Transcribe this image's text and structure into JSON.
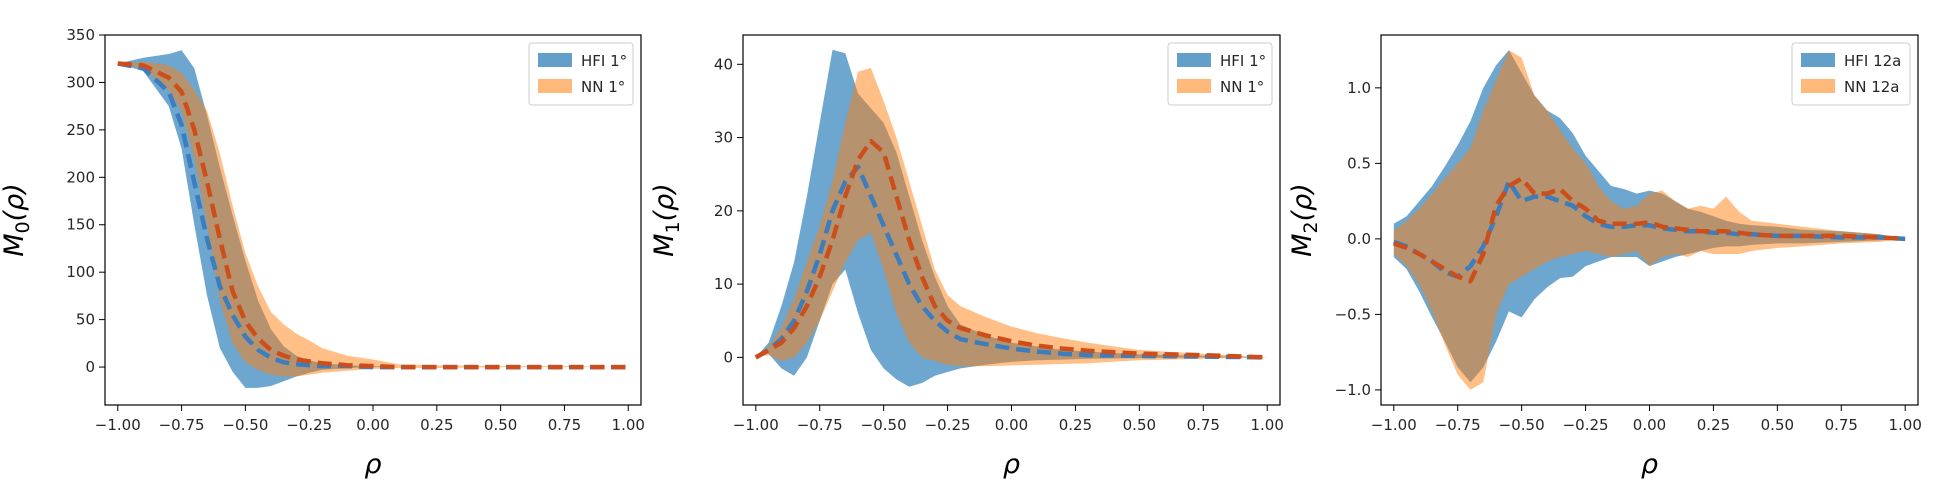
{
  "chart_data": [
    {
      "type": "area",
      "ylabel": "M_0(ρ)",
      "ylabel_parts": {
        "base": "M",
        "sub": "0",
        "arg": "(ρ)"
      },
      "xlabel": "ρ",
      "xlim": [
        -1.05,
        1.05
      ],
      "ylim": [
        -40,
        350
      ],
      "xticks": [
        -1.0,
        -0.75,
        -0.5,
        -0.25,
        0.0,
        0.25,
        0.5,
        0.75,
        1.0
      ],
      "xtick_labels": [
        "−1.00",
        "−0.75",
        "−0.50",
        "−0.25",
        "0.00",
        "0.25",
        "0.50",
        "0.75",
        "1.00"
      ],
      "yticks": [
        0,
        50,
        100,
        150,
        200,
        250,
        300,
        350
      ],
      "ytick_labels": [
        "0",
        "50",
        "100",
        "150",
        "200",
        "250",
        "300",
        "350"
      ],
      "legend": "top-right",
      "x": [
        -1.0,
        -0.9,
        -0.8,
        -0.75,
        -0.7,
        -0.65,
        -0.6,
        -0.55,
        -0.5,
        -0.45,
        -0.4,
        -0.35,
        -0.3,
        -0.25,
        -0.2,
        -0.1,
        0.0,
        0.1,
        0.25,
        0.5,
        0.75,
        1.0
      ],
      "series": [
        {
          "name": "HFI 1°",
          "color": "#1f77b4",
          "mean": [
            320,
            315,
            290,
            255,
            195,
            135,
            85,
            55,
            32,
            18,
            10,
            5,
            3,
            2,
            1,
            1,
            0,
            0,
            0,
            0,
            0,
            0
          ],
          "upper": [
            320,
            326,
            330,
            334,
            315,
            265,
            210,
            160,
            112,
            70,
            40,
            22,
            12,
            7,
            4,
            2,
            1,
            0,
            0,
            0,
            0,
            0
          ],
          "lower": [
            320,
            312,
            275,
            230,
            150,
            75,
            20,
            -5,
            -22,
            -22,
            -20,
            -15,
            -10,
            -6,
            -3,
            -1,
            0,
            0,
            0,
            0,
            0,
            0
          ]
        },
        {
          "name": "NN 1°",
          "color": "#ff7f0e",
          "mean": [
            320,
            318,
            305,
            290,
            250,
            195,
            135,
            80,
            48,
            30,
            18,
            12,
            8,
            6,
            4,
            2,
            1,
            0,
            0,
            0,
            0,
            0
          ],
          "upper": [
            320,
            322,
            318,
            310,
            292,
            270,
            225,
            170,
            120,
            85,
            58,
            45,
            35,
            28,
            20,
            12,
            8,
            3,
            2,
            1,
            1,
            0
          ],
          "lower": [
            320,
            315,
            292,
            270,
            220,
            150,
            70,
            25,
            5,
            -3,
            -8,
            -10,
            -10,
            -8,
            -6,
            -4,
            -2,
            -1,
            -1,
            0,
            0,
            0
          ]
        }
      ]
    },
    {
      "type": "area",
      "ylabel": "M_1(ρ)",
      "ylabel_parts": {
        "base": "M",
        "sub": "1",
        "arg": "(ρ)"
      },
      "xlabel": "ρ",
      "xlim": [
        -1.05,
        1.05
      ],
      "ylim": [
        -6.5,
        44
      ],
      "xticks": [
        -1.0,
        -0.75,
        -0.5,
        -0.25,
        0.0,
        0.25,
        0.5,
        0.75,
        1.0
      ],
      "xtick_labels": [
        "−1.00",
        "−0.75",
        "−0.50",
        "−0.25",
        "0.00",
        "0.25",
        "0.50",
        "0.75",
        "1.00"
      ],
      "yticks": [
        0,
        10,
        20,
        30,
        40
      ],
      "ytick_labels": [
        "0",
        "10",
        "20",
        "30",
        "40"
      ],
      "legend": "top-right",
      "x": [
        -1.0,
        -0.95,
        -0.9,
        -0.85,
        -0.8,
        -0.75,
        -0.7,
        -0.65,
        -0.6,
        -0.55,
        -0.5,
        -0.45,
        -0.4,
        -0.35,
        -0.3,
        -0.25,
        -0.2,
        -0.1,
        0.0,
        0.1,
        0.2,
        0.3,
        0.5,
        0.75,
        1.0
      ],
      "series": [
        {
          "name": "HFI 1°",
          "color": "#1f77b4",
          "mean": [
            0,
            1,
            2.5,
            5,
            9,
            14,
            20,
            24,
            26,
            22,
            18,
            14,
            10,
            7,
            5,
            3.5,
            2.5,
            1.8,
            1.2,
            0.8,
            0.5,
            0.3,
            0.2,
            0.1,
            0
          ],
          "upper": [
            0,
            2,
            7,
            13,
            22,
            32,
            42,
            41.5,
            36,
            34,
            32,
            28,
            22,
            16,
            11,
            7,
            4.5,
            3,
            2,
            1.5,
            1,
            0.8,
            0.4,
            0.2,
            0
          ],
          "lower": [
            0,
            0.5,
            -1.5,
            -2.5,
            0,
            5,
            10,
            12,
            6,
            1,
            -1.5,
            -3,
            -4,
            -3.5,
            -2.5,
            -2,
            -1.5,
            -1,
            -0.6,
            -0.4,
            -0.3,
            -0.2,
            -0.1,
            0,
            0
          ]
        },
        {
          "name": "NN 1°",
          "color": "#ff7f0e",
          "mean": [
            0,
            1,
            2,
            4,
            7,
            11,
            16,
            22,
            27,
            29.5,
            28,
            22,
            16,
            11,
            7,
            5,
            4,
            3,
            2.2,
            1.6,
            1.2,
            0.9,
            0.5,
            0.3,
            0
          ],
          "upper": [
            0,
            1.5,
            4,
            8,
            13,
            18,
            24,
            32,
            39,
            39.5,
            35,
            30,
            24,
            18,
            12,
            8.5,
            7,
            5.5,
            4.2,
            3.3,
            2.6,
            2,
            1,
            0.5,
            0
          ],
          "lower": [
            0,
            0.3,
            -0.5,
            0,
            2,
            5,
            9,
            13,
            16,
            17,
            12,
            6,
            2,
            0,
            -0.5,
            -1,
            -1.2,
            -1.2,
            -1.1,
            -1,
            -0.9,
            -0.8,
            -0.4,
            -0.2,
            0
          ]
        }
      ]
    },
    {
      "type": "area",
      "ylabel": "M_2(ρ)",
      "ylabel_parts": {
        "base": "M",
        "sub": "2",
        "arg": "(ρ)"
      },
      "xlabel": "ρ",
      "xlim": [
        -1.05,
        1.05
      ],
      "ylim": [
        -1.1,
        1.35
      ],
      "xticks": [
        -1.0,
        -0.75,
        -0.5,
        -0.25,
        0.0,
        0.25,
        0.5,
        0.75,
        1.0
      ],
      "xtick_labels": [
        "−1.00",
        "−0.75",
        "−0.50",
        "−0.25",
        "0.00",
        "0.25",
        "0.50",
        "0.75",
        "1.00"
      ],
      "yticks": [
        -1.0,
        -0.5,
        0.0,
        0.5,
        1.0
      ],
      "ytick_labels": [
        "−1.0",
        "−0.5",
        "0.0",
        "0.5",
        "1.0"
      ],
      "legend": "top-right",
      "x": [
        -1.0,
        -0.95,
        -0.9,
        -0.85,
        -0.8,
        -0.75,
        -0.7,
        -0.65,
        -0.6,
        -0.55,
        -0.5,
        -0.45,
        -0.4,
        -0.35,
        -0.3,
        -0.25,
        -0.2,
        -0.15,
        -0.1,
        -0.05,
        0.0,
        0.05,
        0.1,
        0.15,
        0.2,
        0.25,
        0.3,
        0.35,
        0.4,
        0.5,
        0.6,
        0.75,
        0.9,
        1.0
      ],
      "series": [
        {
          "name": "HFI 12a",
          "color": "#1f77b4",
          "mean": [
            -0.02,
            -0.05,
            -0.1,
            -0.15,
            -0.22,
            -0.25,
            -0.18,
            -0.05,
            0.15,
            0.38,
            0.25,
            0.28,
            0.28,
            0.25,
            0.22,
            0.15,
            0.1,
            0.08,
            0.08,
            0.09,
            0.09,
            0.07,
            0.06,
            0.05,
            0.05,
            0.04,
            0.04,
            0.03,
            0.03,
            0.02,
            0.02,
            0.01,
            0.01,
            0
          ],
          "upper": [
            0.1,
            0.15,
            0.25,
            0.35,
            0.48,
            0.62,
            0.78,
            1.0,
            1.15,
            1.25,
            1.1,
            0.95,
            0.85,
            0.8,
            0.7,
            0.55,
            0.45,
            0.35,
            0.33,
            0.3,
            0.32,
            0.3,
            0.25,
            0.2,
            0.18,
            0.15,
            0.12,
            0.1,
            0.09,
            0.08,
            0.06,
            0.05,
            0.03,
            0
          ],
          "lower": [
            -0.12,
            -0.2,
            -0.35,
            -0.52,
            -0.68,
            -0.85,
            -0.95,
            -0.85,
            -0.68,
            -0.48,
            -0.52,
            -0.4,
            -0.32,
            -0.26,
            -0.25,
            -0.18,
            -0.15,
            -0.12,
            -0.12,
            -0.12,
            -0.18,
            -0.15,
            -0.12,
            -0.1,
            -0.08,
            -0.06,
            -0.05,
            -0.05,
            -0.04,
            -0.03,
            -0.03,
            -0.02,
            -0.01,
            0
          ]
        },
        {
          "name": "NN 12a",
          "color": "#ff7f0e",
          "mean": [
            -0.03,
            -0.06,
            -0.1,
            -0.15,
            -0.2,
            -0.25,
            -0.28,
            -0.1,
            0.22,
            0.35,
            0.4,
            0.3,
            0.3,
            0.33,
            0.25,
            0.2,
            0.12,
            0.1,
            0.1,
            0.1,
            0.11,
            0.08,
            0.07,
            0.06,
            0.05,
            0.05,
            0.05,
            0.04,
            0.03,
            0.02,
            0.02,
            0.02,
            0.01,
            0
          ],
          "upper": [
            0.05,
            0.12,
            0.2,
            0.3,
            0.4,
            0.5,
            0.6,
            0.85,
            1.05,
            1.25,
            1.2,
            0.95,
            0.85,
            0.72,
            0.6,
            0.5,
            0.35,
            0.25,
            0.2,
            0.22,
            0.3,
            0.32,
            0.25,
            0.2,
            0.22,
            0.2,
            0.28,
            0.18,
            0.12,
            0.1,
            0.08,
            0.05,
            0.03,
            0
          ],
          "lower": [
            -0.1,
            -0.18,
            -0.3,
            -0.48,
            -0.7,
            -0.9,
            -1.0,
            -0.95,
            -0.5,
            -0.3,
            -0.25,
            -0.2,
            -0.15,
            -0.12,
            -0.1,
            -0.08,
            -0.1,
            -0.12,
            -0.1,
            -0.08,
            -0.18,
            -0.12,
            -0.1,
            -0.12,
            -0.08,
            -0.1,
            -0.1,
            -0.1,
            -0.08,
            -0.06,
            -0.05,
            -0.03,
            -0.02,
            0
          ]
        }
      ]
    }
  ]
}
